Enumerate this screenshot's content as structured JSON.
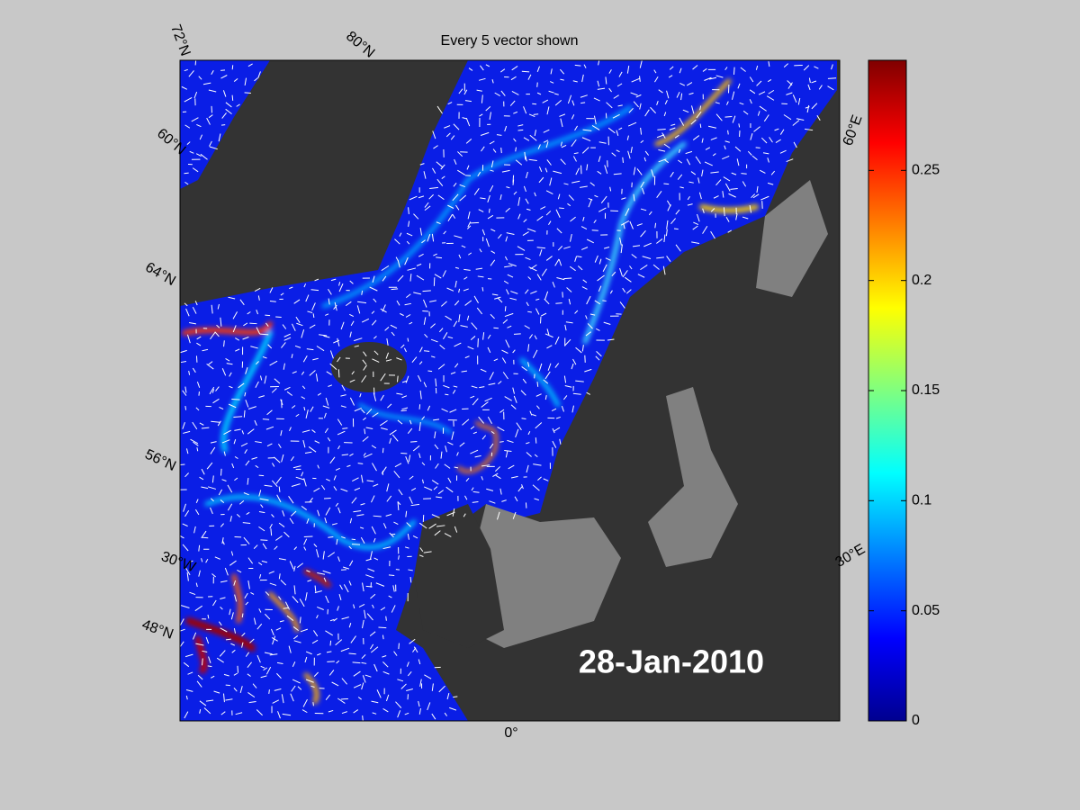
{
  "map": {
    "title": "Every 5 vector shown",
    "date": "28-Jan-2010",
    "graticule_labels": [
      "72°N",
      "80°N",
      "60°N",
      "64°N",
      "56°N",
      "30°W",
      "48°N",
      "0°",
      "30°E",
      "60°E"
    ],
    "colorbar": {
      "lim": [
        0,
        0.3
      ],
      "ticks": [
        0,
        0.05,
        0.1,
        0.15,
        0.2,
        0.25
      ]
    }
  }
}
